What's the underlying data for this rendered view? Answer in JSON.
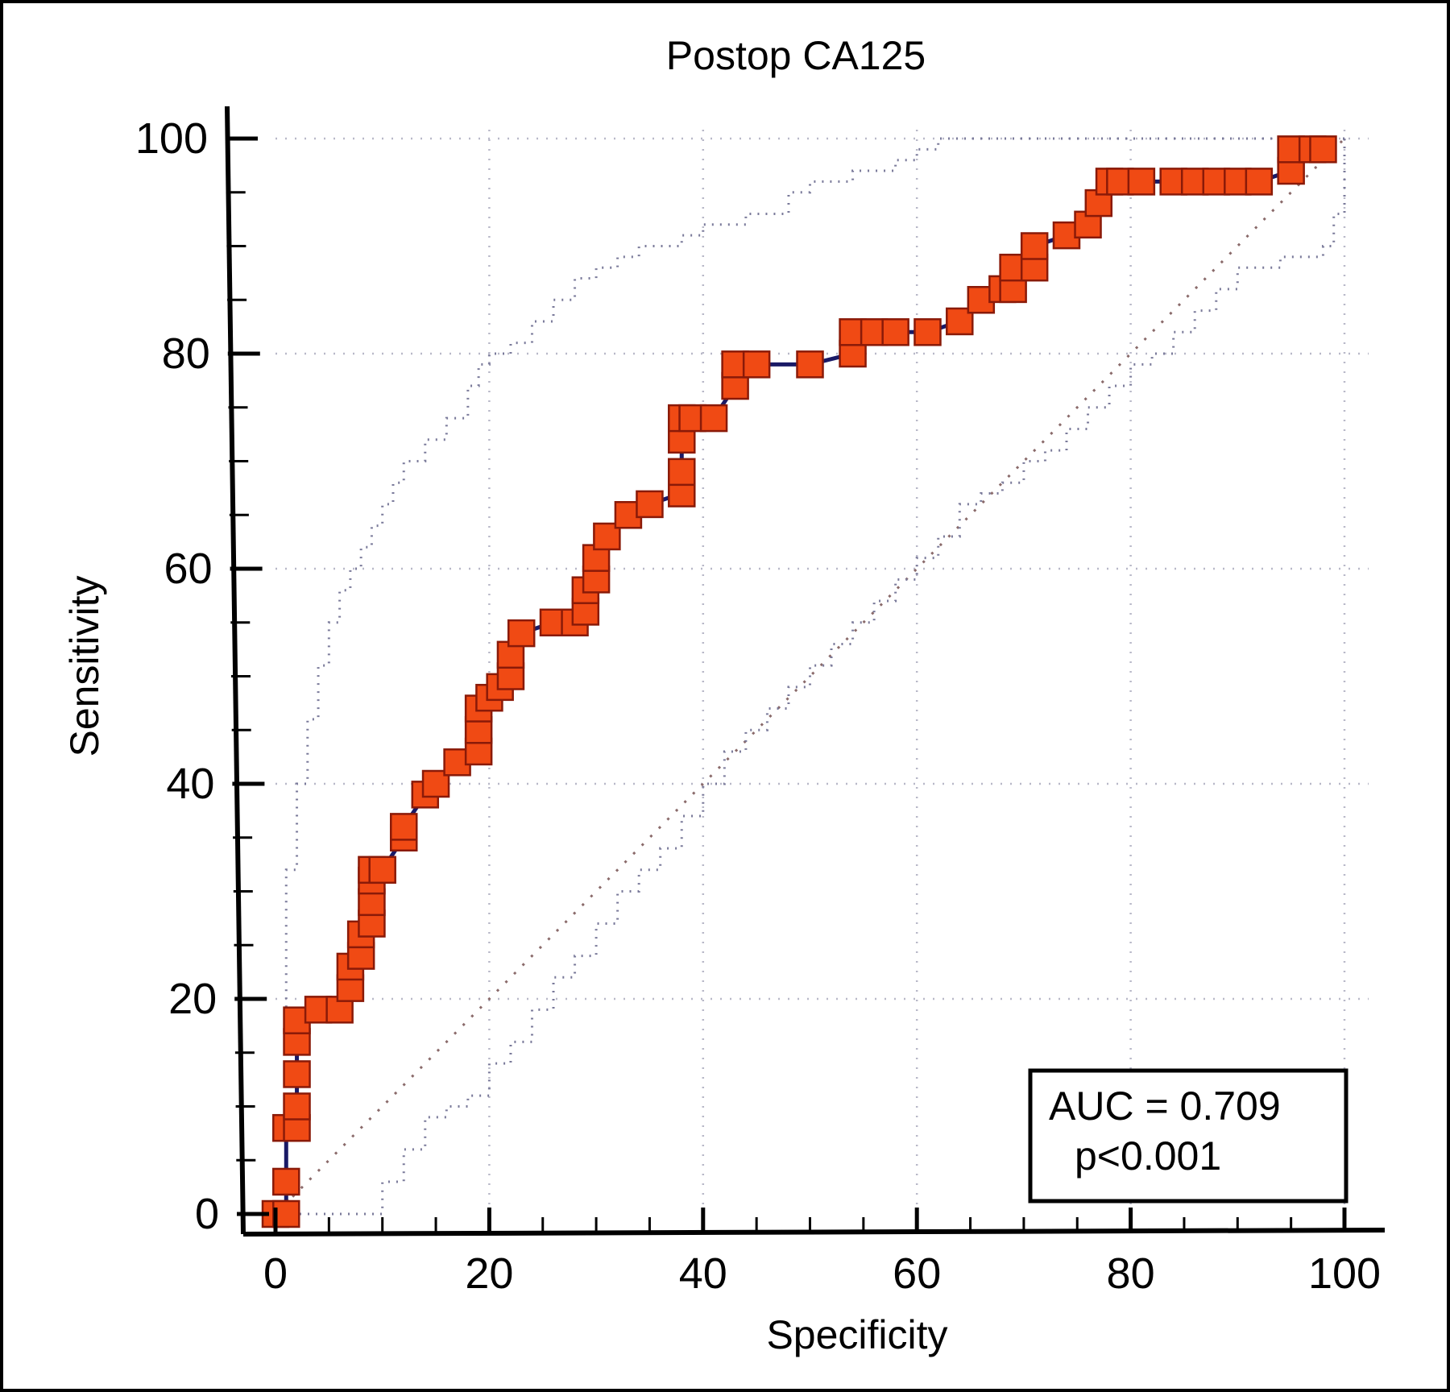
{
  "chart_data": {
    "type": "line",
    "title": "Postop CA125",
    "xlabel": "Specificity",
    "ylabel": "Sensitivity",
    "xlim": [
      0,
      100
    ],
    "ylim": [
      0,
      100
    ],
    "xticks": [
      "0",
      "20",
      "40",
      "60",
      "80",
      "100"
    ],
    "yticks": [
      "0",
      "20",
      "40",
      "60",
      "80",
      "100"
    ],
    "grid": true,
    "colors": {
      "curve": "#1a1a66",
      "marker_fill": "#f04a14",
      "marker_edge": "#8a1a08",
      "ci": "#7a7a9a",
      "diagonal": "#8a6a6a"
    },
    "annotation": {
      "auc": "AUC = 0.709",
      "p": "p<0.001"
    },
    "series": [
      {
        "type": "roc",
        "x": [
          0,
          1,
          1,
          1,
          2,
          2,
          2,
          2,
          2,
          4,
          6,
          7,
          7,
          8,
          8,
          9,
          9,
          9,
          9,
          10,
          12,
          12,
          14,
          15,
          17,
          19,
          19,
          19,
          20,
          21,
          22,
          22,
          23,
          26,
          28,
          29,
          29,
          30,
          30,
          31,
          33,
          35,
          38,
          38,
          38,
          38,
          39,
          41,
          43,
          43,
          45,
          50,
          54,
          54,
          56,
          58,
          61,
          64,
          66,
          68,
          69,
          69,
          71,
          71,
          74,
          76,
          77,
          78,
          79,
          81,
          84,
          86,
          88,
          90,
          92,
          95,
          95,
          97,
          98
        ],
        "y": [
          0,
          0,
          3,
          8,
          8,
          10,
          13,
          16,
          18,
          19,
          19,
          21,
          23,
          24,
          26,
          27,
          29,
          31,
          32,
          32,
          35,
          36,
          39,
          40,
          42,
          43,
          45,
          47,
          48,
          49,
          50,
          52,
          54,
          55,
          55,
          56,
          58,
          59,
          61,
          63,
          65,
          66,
          67,
          69,
          72,
          74,
          74,
          74,
          77,
          79,
          79,
          79,
          80,
          82,
          82,
          82,
          82,
          83,
          85,
          86,
          86,
          88,
          88,
          90,
          91,
          92,
          94,
          96,
          96,
          96,
          96,
          96,
          96,
          96,
          96,
          97,
          99,
          99,
          99
        ]
      },
      {
        "type": "ci_upper",
        "x": [
          0,
          1,
          2,
          3,
          4,
          5,
          6,
          7,
          8,
          9,
          10,
          11,
          12,
          14,
          16,
          18,
          19,
          20,
          22,
          24,
          26,
          28,
          30,
          32,
          34,
          36,
          38,
          40,
          44,
          48,
          50,
          54,
          58,
          60,
          62,
          66,
          70,
          76,
          80,
          86,
          90,
          95,
          100
        ],
        "y": [
          0,
          32,
          40,
          46,
          51,
          55,
          58,
          60,
          62,
          64,
          66,
          68,
          70,
          72,
          74,
          77,
          79,
          80,
          81,
          83,
          85,
          87,
          88,
          89,
          90,
          90,
          91,
          92,
          93,
          95,
          96,
          97,
          98,
          99,
          100,
          100,
          100,
          100,
          100,
          100,
          100,
          100,
          100
        ]
      },
      {
        "type": "ci_lower",
        "x": [
          0,
          4,
          8,
          10,
          12,
          14,
          16,
          18,
          20,
          22,
          24,
          26,
          28,
          30,
          32,
          34,
          36,
          38,
          40,
          42,
          44,
          46,
          48,
          50,
          52,
          54,
          56,
          58,
          60,
          62,
          64,
          66,
          68,
          70,
          72,
          74,
          76,
          78,
          80,
          82,
          84,
          86,
          88,
          90,
          92,
          94,
          96,
          98,
          99,
          100
        ],
        "y": [
          0,
          0,
          0,
          3,
          6,
          9,
          10,
          11,
          14,
          16,
          19,
          22,
          24,
          27,
          30,
          32,
          34,
          37,
          40,
          43,
          45,
          47,
          49,
          51,
          53,
          55,
          57,
          59,
          61,
          63,
          66,
          67,
          68,
          70,
          71,
          73,
          75,
          77,
          79,
          80,
          82,
          84,
          86,
          88,
          88,
          89,
          89,
          90,
          93,
          100
        ]
      },
      {
        "type": "reference",
        "x": [
          0,
          100
        ],
        "y": [
          0,
          100
        ]
      }
    ]
  }
}
